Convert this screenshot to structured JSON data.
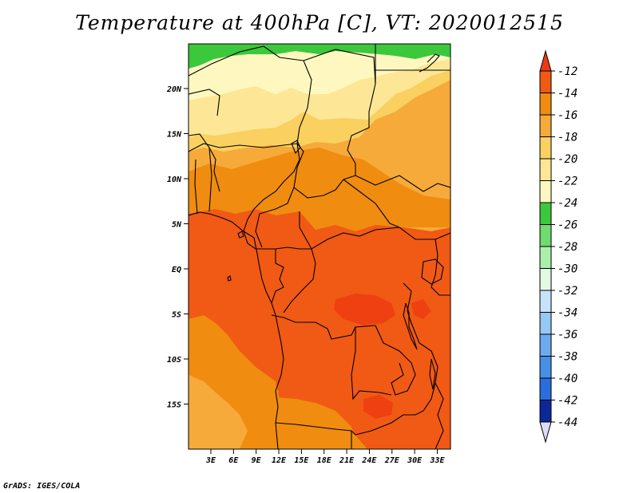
{
  "title": "Temperature at 400hPa [C], VT: 2020012515",
  "footer": "GrADS: IGES/COLA",
  "map": {
    "variable": "Temperature",
    "level": "400hPa",
    "units": "C",
    "valid_time": "2020012515",
    "lat_ticks": [
      {
        "value": 20,
        "label": "20N"
      },
      {
        "value": 15,
        "label": "15N"
      },
      {
        "value": 10,
        "label": "10N"
      },
      {
        "value": 5,
        "label": "5N"
      },
      {
        "value": 0,
        "label": "EQ"
      },
      {
        "value": -5,
        "label": "5S"
      },
      {
        "value": -10,
        "label": "10S"
      },
      {
        "value": -15,
        "label": "15S"
      }
    ],
    "lon_ticks": [
      {
        "value": 3,
        "label": "3E"
      },
      {
        "value": 6,
        "label": "6E"
      },
      {
        "value": 9,
        "label": "9E"
      },
      {
        "value": 12,
        "label": "12E"
      },
      {
        "value": 15,
        "label": "15E"
      },
      {
        "value": 18,
        "label": "18E"
      },
      {
        "value": 21,
        "label": "21E"
      },
      {
        "value": 24,
        "label": "24E"
      },
      {
        "value": 27,
        "label": "27E"
      },
      {
        "value": 30,
        "label": "30E"
      },
      {
        "value": 33,
        "label": "33E"
      }
    ]
  },
  "colorbar": {
    "levels": [
      {
        "label": "-12",
        "color": "#f05a14"
      },
      {
        "label": "-14",
        "color": "#f08c10"
      },
      {
        "label": "-16",
        "color": "#f6aa3a"
      },
      {
        "label": "-18",
        "color": "#fad060"
      },
      {
        "label": "-20",
        "color": "#fde796"
      },
      {
        "label": "-22",
        "color": "#fef8c0"
      },
      {
        "label": "-24",
        "color": "#3cc83c"
      },
      {
        "label": "-26",
        "color": "#6edc6e"
      },
      {
        "label": "-28",
        "color": "#aaf0aa"
      },
      {
        "label": "-30",
        "color": "#e2fae2"
      },
      {
        "label": "-32",
        "color": "#c8e2fa"
      },
      {
        "label": "-34",
        "color": "#96c8f5"
      },
      {
        "label": "-36",
        "color": "#6eaaf0"
      },
      {
        "label": "-38",
        "color": "#4690e6"
      },
      {
        "label": "-40",
        "color": "#2a6ede"
      },
      {
        "label": "-42",
        "color": "#1450c8"
      },
      {
        "label": "-44",
        "color": "#0a2896"
      }
    ],
    "top_color": "#ee3a10",
    "bottom_color": "#dcdcf8"
  },
  "colors": {
    "c_m12": "#f05a14",
    "c_m11": "#ee4010",
    "c_m14": "#f08c10",
    "c_m16": "#f6aa3a",
    "c_m18": "#fad060",
    "c_m20": "#fde796",
    "c_m22": "#fef8c0",
    "c_green": "#3cc83c"
  }
}
